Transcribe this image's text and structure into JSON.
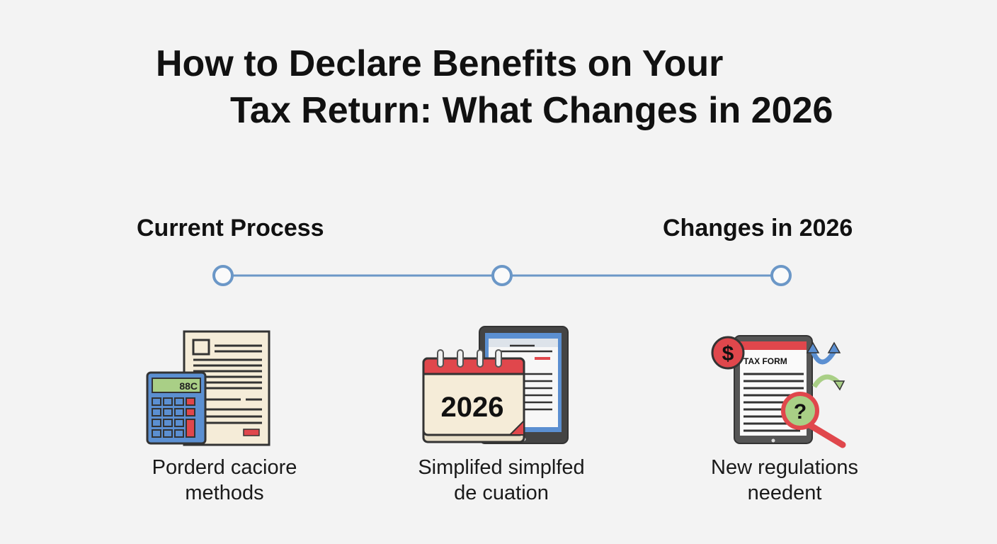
{
  "title": {
    "line1": "How to Declare Benefits on Your",
    "line2": "Tax Return: What Changes in 2026"
  },
  "phases": {
    "left": "Current Process",
    "right": "Changes in 2026"
  },
  "colors": {
    "timeline": "#6b97c7",
    "red": "#e0474c",
    "blue": "#5b8fd1",
    "paper": "#f5ecd8",
    "green": "#a9cf86",
    "dark": "#333333"
  },
  "steps": [
    {
      "icon": "calculator-document-icon",
      "display": "88C",
      "caption_line1": "Porderd caciore",
      "caption_line2": "methods"
    },
    {
      "icon": "calendar-tablet-icon",
      "year": "2026",
      "caption_line1": "Simplifed simplfed",
      "caption_line2": "de cuation"
    },
    {
      "icon": "tax-form-tablet-icon",
      "form_label": "TAX FORM",
      "currency": "$",
      "question": "?",
      "caption_line1": "New regulations",
      "caption_line2": "needent"
    }
  ]
}
